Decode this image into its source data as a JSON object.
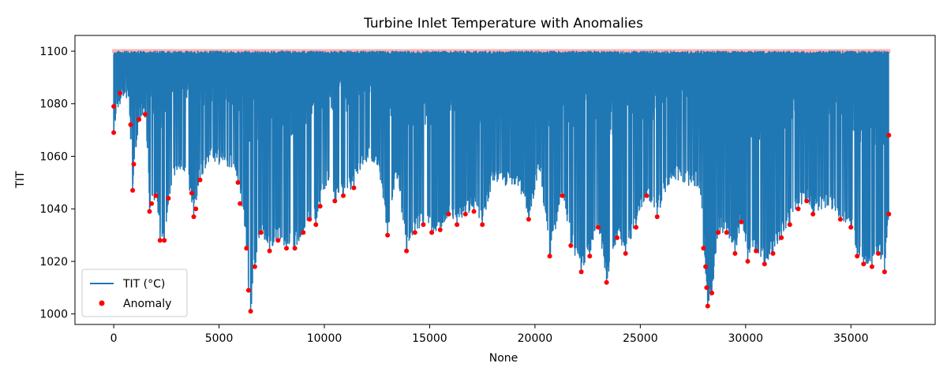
{
  "chart_data": {
    "type": "line",
    "title": "Turbine Inlet Temperature with Anomalies",
    "xlabel": "None",
    "ylabel": "TIT",
    "xlim": [
      -1840,
      39000
    ],
    "ylim": [
      996,
      1106
    ],
    "xticks": [
      0,
      5000,
      10000,
      15000,
      20000,
      25000,
      30000,
      35000
    ],
    "xtick_labels": [
      "0",
      "5000",
      "10000",
      "15000",
      "20000",
      "25000",
      "30000",
      "35000"
    ],
    "yticks": [
      1000,
      1020,
      1040,
      1060,
      1080,
      1100
    ],
    "ytick_labels": [
      "1000",
      "1020",
      "1040",
      "1060",
      "1080",
      "1100"
    ],
    "grid": false,
    "legend_position": "lower-left",
    "series": [
      {
        "name": "TIT (°C)",
        "kind": "line",
        "color": "#1f77b4",
        "upper_envelope": [
          [
            0,
            1100
          ],
          [
            36800,
            1100
          ]
        ],
        "lower_envelope": [
          [
            0,
            1069
          ],
          [
            300,
            1080
          ],
          [
            700,
            1083
          ],
          [
            900,
            1047
          ],
          [
            1200,
            1074
          ],
          [
            1500,
            1075
          ],
          [
            1700,
            1039
          ],
          [
            2000,
            1045
          ],
          [
            2200,
            1028
          ],
          [
            2400,
            1028
          ],
          [
            2600,
            1044
          ],
          [
            3000,
            1055
          ],
          [
            3300,
            1055
          ],
          [
            3600,
            1047
          ],
          [
            3800,
            1037
          ],
          [
            4100,
            1051
          ],
          [
            4500,
            1058
          ],
          [
            5000,
            1057
          ],
          [
            5500,
            1056
          ],
          [
            5900,
            1050
          ],
          [
            6100,
            1041
          ],
          [
            6300,
            1025
          ],
          [
            6400,
            1009
          ],
          [
            6500,
            1001
          ],
          [
            6700,
            1018
          ],
          [
            7000,
            1031
          ],
          [
            7400,
            1024
          ],
          [
            7800,
            1028
          ],
          [
            8200,
            1025
          ],
          [
            8600,
            1025
          ],
          [
            9000,
            1031
          ],
          [
            9300,
            1036
          ],
          [
            9600,
            1034
          ],
          [
            9800,
            1041
          ],
          [
            10200,
            1051
          ],
          [
            10500,
            1043
          ],
          [
            10900,
            1045
          ],
          [
            11400,
            1048
          ],
          [
            11700,
            1055
          ],
          [
            12000,
            1058
          ],
          [
            12500,
            1057
          ],
          [
            13000,
            1030
          ],
          [
            13400,
            1054
          ],
          [
            13900,
            1024
          ],
          [
            14300,
            1031
          ],
          [
            14700,
            1034
          ],
          [
            15100,
            1031
          ],
          [
            15500,
            1032
          ],
          [
            15900,
            1038
          ],
          [
            16300,
            1034
          ],
          [
            16700,
            1038
          ],
          [
            17100,
            1039
          ],
          [
            17500,
            1034
          ],
          [
            18000,
            1051
          ],
          [
            18600,
            1049
          ],
          [
            19200,
            1049
          ],
          [
            19700,
            1036
          ],
          [
            20200,
            1055
          ],
          [
            20700,
            1022
          ],
          [
            21300,
            1045
          ],
          [
            21700,
            1026
          ],
          [
            22200,
            1016
          ],
          [
            22600,
            1022
          ],
          [
            23000,
            1033
          ],
          [
            23400,
            1012
          ],
          [
            23900,
            1029
          ],
          [
            24300,
            1023
          ],
          [
            24800,
            1033
          ],
          [
            25300,
            1045
          ],
          [
            25800,
            1037
          ],
          [
            26300,
            1049
          ],
          [
            26800,
            1051
          ],
          [
            27300,
            1049
          ],
          [
            27800,
            1048
          ],
          [
            28000,
            1025
          ],
          [
            28200,
            1003
          ],
          [
            28400,
            1008
          ],
          [
            28700,
            1031
          ],
          [
            29100,
            1031
          ],
          [
            29500,
            1023
          ],
          [
            29800,
            1035
          ],
          [
            30100,
            1020
          ],
          [
            30500,
            1024
          ],
          [
            30900,
            1019
          ],
          [
            31300,
            1023
          ],
          [
            31700,
            1029
          ],
          [
            32100,
            1034
          ],
          [
            32500,
            1040
          ],
          [
            32900,
            1043
          ],
          [
            33200,
            1038
          ],
          [
            33600,
            1040
          ],
          [
            34100,
            1040
          ],
          [
            34500,
            1036
          ],
          [
            35000,
            1033
          ],
          [
            35300,
            1022
          ],
          [
            35600,
            1019
          ],
          [
            36000,
            1018
          ],
          [
            36300,
            1023
          ],
          [
            36600,
            1016
          ],
          [
            36800,
            1038
          ]
        ]
      },
      {
        "name": "Anomaly",
        "kind": "scatter",
        "color": "#ff0000",
        "points": [
          [
            0,
            1069
          ],
          [
            0,
            1079
          ],
          [
            300,
            1084
          ],
          [
            800,
            1072
          ],
          [
            900,
            1047
          ],
          [
            950,
            1057
          ],
          [
            1200,
            1074
          ],
          [
            1500,
            1076
          ],
          [
            1700,
            1039
          ],
          [
            1800,
            1042
          ],
          [
            2000,
            1045
          ],
          [
            2200,
            1028
          ],
          [
            2400,
            1028
          ],
          [
            2600,
            1044
          ],
          [
            3700,
            1046
          ],
          [
            3800,
            1037
          ],
          [
            3900,
            1040
          ],
          [
            4100,
            1051
          ],
          [
            5900,
            1050
          ],
          [
            6000,
            1042
          ],
          [
            6300,
            1025
          ],
          [
            6400,
            1009
          ],
          [
            6500,
            1001
          ],
          [
            6700,
            1018
          ],
          [
            7000,
            1031
          ],
          [
            7400,
            1024
          ],
          [
            7800,
            1028
          ],
          [
            8200,
            1025
          ],
          [
            8600,
            1025
          ],
          [
            9000,
            1031
          ],
          [
            9300,
            1036
          ],
          [
            9600,
            1034
          ],
          [
            9800,
            1041
          ],
          [
            10500,
            1043
          ],
          [
            10900,
            1045
          ],
          [
            11400,
            1048
          ],
          [
            13000,
            1030
          ],
          [
            13900,
            1024
          ],
          [
            14300,
            1031
          ],
          [
            14700,
            1034
          ],
          [
            15100,
            1031
          ],
          [
            15500,
            1032
          ],
          [
            15900,
            1038
          ],
          [
            16300,
            1034
          ],
          [
            16700,
            1038
          ],
          [
            17100,
            1039
          ],
          [
            17500,
            1034
          ],
          [
            19700,
            1036
          ],
          [
            20700,
            1022
          ],
          [
            21300,
            1045
          ],
          [
            21700,
            1026
          ],
          [
            22200,
            1016
          ],
          [
            22600,
            1022
          ],
          [
            23000,
            1033
          ],
          [
            23400,
            1012
          ],
          [
            23900,
            1029
          ],
          [
            24300,
            1023
          ],
          [
            24800,
            1033
          ],
          [
            25300,
            1045
          ],
          [
            25800,
            1037
          ],
          [
            28000,
            1025
          ],
          [
            28100,
            1018
          ],
          [
            28150,
            1010
          ],
          [
            28200,
            1003
          ],
          [
            28400,
            1008
          ],
          [
            28700,
            1031
          ],
          [
            29100,
            1031
          ],
          [
            29500,
            1023
          ],
          [
            29800,
            1035
          ],
          [
            30100,
            1020
          ],
          [
            30500,
            1024
          ],
          [
            30900,
            1019
          ],
          [
            31300,
            1023
          ],
          [
            31700,
            1029
          ],
          [
            32100,
            1034
          ],
          [
            32500,
            1040
          ],
          [
            32900,
            1043
          ],
          [
            33200,
            1038
          ],
          [
            34500,
            1036
          ],
          [
            35000,
            1033
          ],
          [
            35300,
            1022
          ],
          [
            35600,
            1019
          ],
          [
            36000,
            1018
          ],
          [
            36300,
            1023
          ],
          [
            36600,
            1016
          ],
          [
            36800,
            1038
          ],
          [
            36800,
            1068
          ]
        ]
      }
    ]
  }
}
